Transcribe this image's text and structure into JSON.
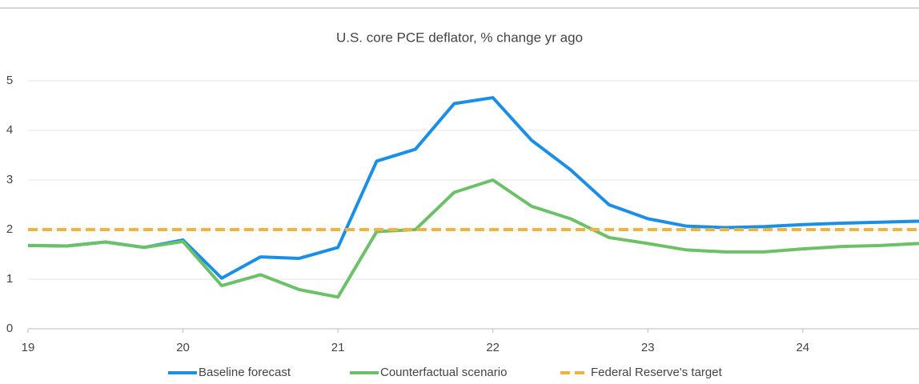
{
  "chart_data": {
    "type": "line",
    "title": "U.S. core PCE deflator, % change yr ago",
    "x": [
      19,
      19.25,
      19.5,
      19.75,
      20,
      20.25,
      20.5,
      20.75,
      21,
      21.25,
      21.5,
      21.75,
      22,
      22.25,
      22.5,
      22.75,
      23,
      23.25,
      23.5,
      23.75,
      24,
      24.25,
      24.5,
      24.75
    ],
    "series": [
      {
        "name": "Baseline forecast",
        "color": "#1b8fe6",
        "dash": false,
        "values": [
          1.68,
          1.67,
          1.75,
          1.64,
          1.79,
          1.02,
          1.45,
          1.42,
          1.64,
          3.38,
          3.62,
          4.54,
          4.66,
          3.8,
          3.21,
          2.5,
          2.22,
          2.07,
          2.04,
          2.06,
          2.1,
          2.13,
          2.15,
          2.17
        ]
      },
      {
        "name": "Counterfactual scenario",
        "color": "#6cc068",
        "dash": false,
        "values": [
          1.68,
          1.67,
          1.75,
          1.64,
          1.76,
          0.87,
          1.09,
          0.79,
          0.64,
          1.96,
          2.0,
          2.75,
          3.0,
          2.47,
          2.22,
          1.84,
          1.72,
          1.59,
          1.55,
          1.55,
          1.61,
          1.66,
          1.68,
          1.72
        ]
      },
      {
        "name": "Federal Reserve's target",
        "color": "#f0b43c",
        "dash": true,
        "values": [
          2,
          2,
          2,
          2,
          2,
          2,
          2,
          2,
          2,
          2,
          2,
          2,
          2,
          2,
          2,
          2,
          2,
          2,
          2,
          2,
          2,
          2,
          2,
          2
        ]
      }
    ],
    "xlim": [
      19,
      24.75
    ],
    "xticks": [
      19,
      20,
      21,
      22,
      23,
      24
    ],
    "ylim": [
      0,
      5
    ],
    "yticks": [
      0,
      1,
      2,
      3,
      4,
      5
    ],
    "grid": true,
    "legend": "bottom"
  }
}
